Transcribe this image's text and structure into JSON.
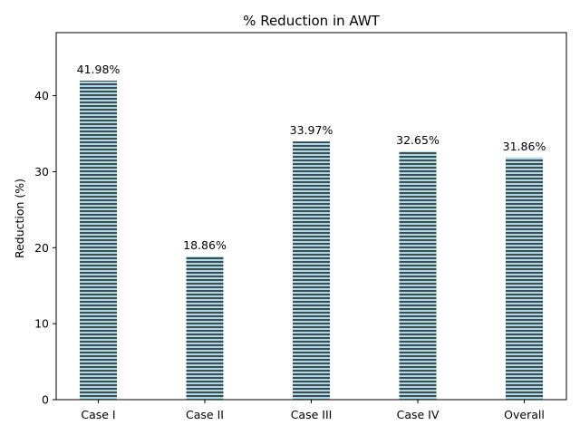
{
  "chart_data": {
    "type": "bar",
    "title": "% Reduction in AWT",
    "xlabel": "",
    "ylabel": "Reduction (%)",
    "categories": [
      "Case I",
      "Case II",
      "Case III",
      "Case IV",
      "Overall"
    ],
    "values": [
      41.98,
      18.86,
      33.97,
      32.65,
      31.86
    ],
    "data_labels": [
      "41.98%",
      "18.86%",
      "33.97%",
      "32.65%",
      "31.86%"
    ],
    "ylim": [
      0,
      48.3
    ],
    "yticks": [
      0,
      10,
      20,
      30,
      40
    ],
    "grid": false,
    "bar_fill": "#add8e6",
    "bar_hatch": "horizontal",
    "hatch_color": "#000000"
  }
}
